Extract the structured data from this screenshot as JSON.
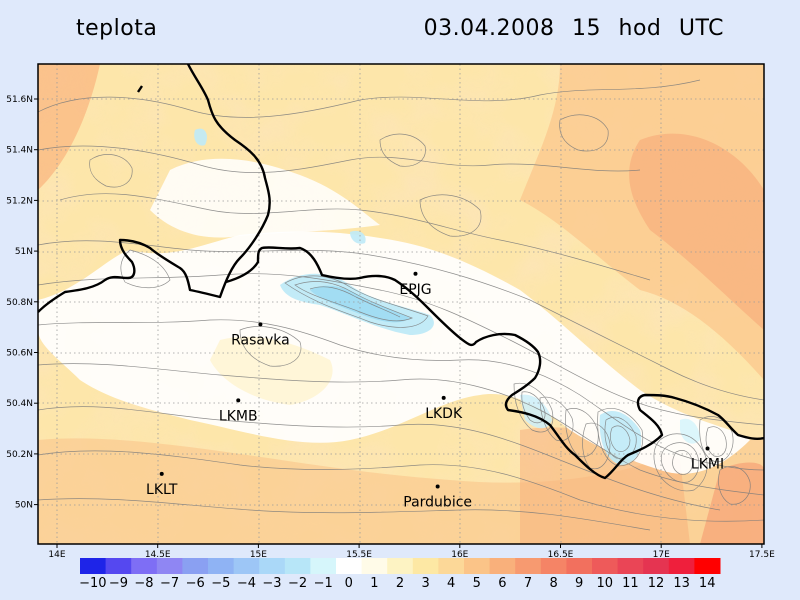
{
  "title": {
    "variable": "teplota",
    "datetime": "03.04.2008   15 hod UTC"
  },
  "map": {
    "lon_ticks": [
      "14E",
      "14.5E",
      "15E",
      "15.5E",
      "16E",
      "16.5E",
      "17E",
      "17.5E"
    ],
    "lat_ticks": [
      "51.6N",
      "51.4N",
      "51.2N",
      "51N",
      "50.8N",
      "50.6N",
      "50.4N",
      "50.2N",
      "50N"
    ],
    "places": [
      {
        "name": "EPJG",
        "lon": 15.78,
        "lat": 50.91
      },
      {
        "name": "Rasavka",
        "lon": 15.01,
        "lat": 50.71
      },
      {
        "name": "LKMB",
        "lon": 14.9,
        "lat": 50.41
      },
      {
        "name": "LKDK",
        "lon": 15.92,
        "lat": 50.42
      },
      {
        "name": "LKMI",
        "lon": 17.23,
        "lat": 50.22
      },
      {
        "name": "LKLT",
        "lon": 14.52,
        "lat": 50.12
      },
      {
        "name": "Pardubice",
        "lon": 15.89,
        "lat": 50.07
      }
    ]
  },
  "colorbar": {
    "labels": [
      "-10",
      "-9",
      "-8",
      "-7",
      "-6",
      "-5",
      "-4",
      "-3",
      "-2",
      "-1",
      "0",
      "1",
      "2",
      "3",
      "4",
      "5",
      "6",
      "7",
      "8",
      "9",
      "10",
      "11",
      "12",
      "13",
      "14"
    ],
    "colors": [
      "#1e24e8",
      "#5548f0",
      "#7e6ef5",
      "#8f86f3",
      "#8aa0f2",
      "#8fb3f4",
      "#9dc6f6",
      "#aad8f8",
      "#b7e6f8",
      "#d6f6fb",
      "#ffffff",
      "#fffbe8",
      "#fdf3c3",
      "#fde8a4",
      "#fcd898",
      "#fbc488",
      "#f9b07b",
      "#f79a70",
      "#f58466",
      "#f2705e",
      "#ee5a5a",
      "#ea4556",
      "#e53451",
      "#ef1f3c",
      "#ff0000"
    ]
  }
}
